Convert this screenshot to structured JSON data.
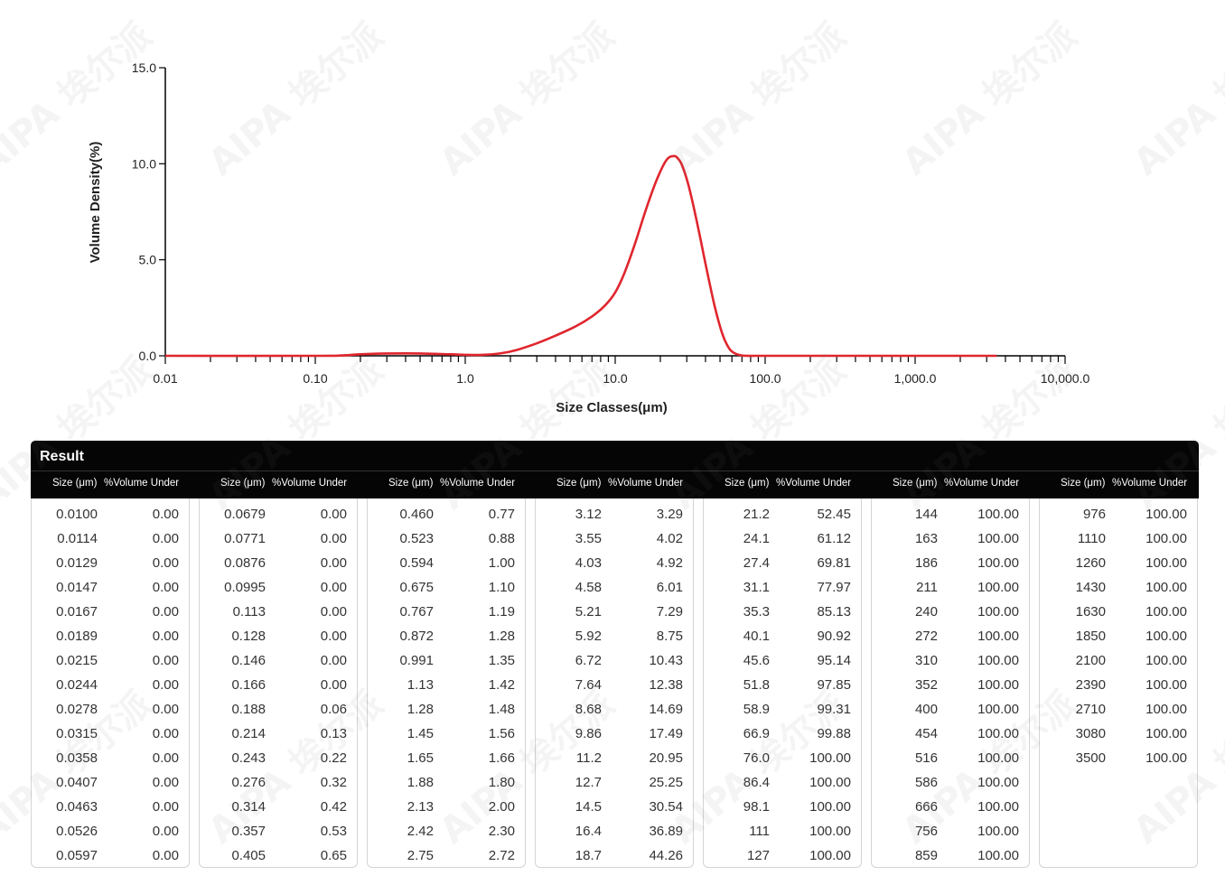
{
  "chart_data": {
    "type": "line",
    "title": "",
    "xlabel": "Size Classes(μm)",
    "ylabel": "Volume Density(%)",
    "xscale": "log",
    "xlim": [
      0.01,
      10000
    ],
    "ylim": [
      0,
      15
    ],
    "x_ticks": [
      "0.01",
      "0.10",
      "1.0",
      "10.0",
      "100.0",
      "1,000.0",
      "10,000.0"
    ],
    "y_ticks": [
      "0.0",
      "5.0",
      "10.0",
      "15.0"
    ],
    "grid": false,
    "series": [
      {
        "color": "#e0262e",
        "x": [
          0.01,
          0.1,
          0.15,
          0.2,
          0.3,
          0.5,
          0.8,
          1.0,
          1.3,
          1.7,
          2.2,
          3.0,
          4.0,
          5.5,
          7.0,
          8.5,
          10.0,
          11.5,
          13.5,
          16.0,
          19.0,
          22.0,
          24.5,
          26.0,
          28.0,
          31.0,
          35.0,
          40.0,
          46.0,
          52.0,
          58.0,
          64.0,
          70.0,
          76.0,
          86.0,
          100.0,
          3500
        ],
        "y": [
          0.0,
          0.0,
          0.02,
          0.08,
          0.12,
          0.12,
          0.08,
          0.05,
          0.05,
          0.12,
          0.3,
          0.65,
          1.05,
          1.55,
          2.05,
          2.6,
          3.3,
          4.3,
          5.8,
          7.6,
          9.2,
          10.2,
          10.4,
          10.3,
          9.9,
          8.8,
          7.0,
          4.8,
          2.6,
          1.1,
          0.35,
          0.1,
          0.02,
          0.0,
          0.0,
          0.0,
          0.0
        ]
      }
    ],
    "watermark": "AIPA 埃尔派"
  },
  "result": {
    "title": "Result",
    "size_header": "Size (μm)",
    "vol_header": "%Volume Under",
    "columns": [
      {
        "size": [
          "0.0100",
          "0.0114",
          "0.0129",
          "0.0147",
          "0.0167",
          "0.0189",
          "0.0215",
          "0.0244",
          "0.0278",
          "0.0315",
          "0.0358",
          "0.0407",
          "0.0463",
          "0.0526",
          "0.0597"
        ],
        "vol": [
          "0.00",
          "0.00",
          "0.00",
          "0.00",
          "0.00",
          "0.00",
          "0.00",
          "0.00",
          "0.00",
          "0.00",
          "0.00",
          "0.00",
          "0.00",
          "0.00",
          "0.00"
        ]
      },
      {
        "size": [
          "0.0679",
          "0.0771",
          "0.0876",
          "0.0995",
          "0.113",
          "0.128",
          "0.146",
          "0.166",
          "0.188",
          "0.214",
          "0.243",
          "0.276",
          "0.314",
          "0.357",
          "0.405"
        ],
        "vol": [
          "0.00",
          "0.00",
          "0.00",
          "0.00",
          "0.00",
          "0.00",
          "0.00",
          "0.00",
          "0.06",
          "0.13",
          "0.22",
          "0.32",
          "0.42",
          "0.53",
          "0.65"
        ]
      },
      {
        "size": [
          "0.460",
          "0.523",
          "0.594",
          "0.675",
          "0.767",
          "0.872",
          "0.991",
          "1.13",
          "1.28",
          "1.45",
          "1.65",
          "1.88",
          "2.13",
          "2.42",
          "2.75"
        ],
        "vol": [
          "0.77",
          "0.88",
          "1.00",
          "1.10",
          "1.19",
          "1.28",
          "1.35",
          "1.42",
          "1.48",
          "1.56",
          "1.66",
          "1.80",
          "2.00",
          "2.30",
          "2.72"
        ]
      },
      {
        "size": [
          "3.12",
          "3.55",
          "4.03",
          "4.58",
          "5.21",
          "5.92",
          "6.72",
          "7.64",
          "8.68",
          "9.86",
          "11.2",
          "12.7",
          "14.5",
          "16.4",
          "18.7"
        ],
        "vol": [
          "3.29",
          "4.02",
          "4.92",
          "6.01",
          "7.29",
          "8.75",
          "10.43",
          "12.38",
          "14.69",
          "17.49",
          "20.95",
          "25.25",
          "30.54",
          "36.89",
          "44.26"
        ]
      },
      {
        "size": [
          "21.2",
          "24.1",
          "27.4",
          "31.1",
          "35.3",
          "40.1",
          "45.6",
          "51.8",
          "58.9",
          "66.9",
          "76.0",
          "86.4",
          "98.1",
          "111",
          "127"
        ],
        "vol": [
          "52.45",
          "61.12",
          "69.81",
          "77.97",
          "85.13",
          "90.92",
          "95.14",
          "97.85",
          "99.31",
          "99.88",
          "100.00",
          "100.00",
          "100.00",
          "100.00",
          "100.00"
        ]
      },
      {
        "size": [
          "144",
          "163",
          "186",
          "211",
          "240",
          "272",
          "310",
          "352",
          "400",
          "454",
          "516",
          "586",
          "666",
          "756",
          "859"
        ],
        "vol": [
          "100.00",
          "100.00",
          "100.00",
          "100.00",
          "100.00",
          "100.00",
          "100.00",
          "100.00",
          "100.00",
          "100.00",
          "100.00",
          "100.00",
          "100.00",
          "100.00",
          "100.00"
        ]
      },
      {
        "size": [
          "976",
          "1110",
          "1260",
          "1430",
          "1630",
          "1850",
          "2100",
          "2390",
          "2710",
          "3080",
          "3500"
        ],
        "vol": [
          "100.00",
          "100.00",
          "100.00",
          "100.00",
          "100.00",
          "100.00",
          "100.00",
          "100.00",
          "100.00",
          "100.00",
          "100.00"
        ]
      }
    ]
  }
}
